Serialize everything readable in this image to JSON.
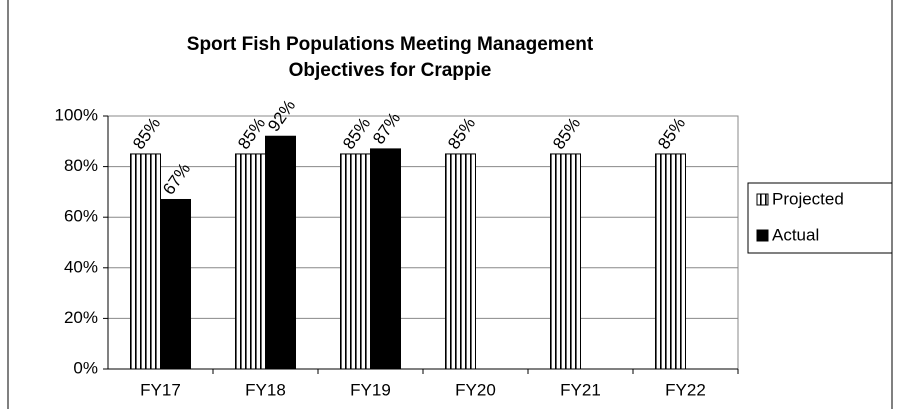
{
  "chart_data": {
    "type": "bar",
    "title": [
      "Sport Fish Populations Meeting Management",
      "Objectives for Crappie"
    ],
    "categories": [
      "FY17",
      "FY18",
      "FY19",
      "FY20",
      "FY21",
      "FY22"
    ],
    "series": [
      {
        "name": "Projected",
        "color": "#000000",
        "values": [
          85,
          85,
          85,
          85,
          85,
          85
        ],
        "value_labels": [
          "85%",
          "85%",
          "85%",
          "85%",
          "85%",
          "85%"
        ]
      },
      {
        "name": "Actual",
        "color": "#000000",
        "values": [
          67,
          92,
          87,
          null,
          null,
          null
        ],
        "value_labels": [
          "67%",
          "92%",
          "87%",
          null,
          null,
          null
        ]
      }
    ],
    "ylim": [
      0,
      100
    ],
    "yticks": [
      {
        "value": 0,
        "label": "0%"
      },
      {
        "value": 20,
        "label": "20%"
      },
      {
        "value": 40,
        "label": "40%"
      },
      {
        "value": 60,
        "label": "60%"
      },
      {
        "value": 80,
        "label": "80%"
      },
      {
        "value": 100,
        "label": "100%"
      }
    ],
    "grid": true,
    "legend": "right"
  }
}
